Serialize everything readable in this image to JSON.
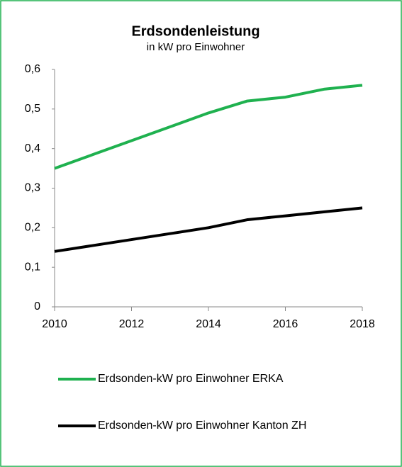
{
  "chart_data": {
    "type": "line",
    "title": "Erdsondenleistung",
    "subtitle": "in kW pro Einwohner",
    "x": [
      2010,
      2011,
      2012,
      2013,
      2014,
      2015,
      2016,
      2017,
      2018
    ],
    "series": [
      {
        "name": "Erdsonden-kW pro Einwohner ERKA",
        "color": "#1fb14f",
        "values": [
          0.35,
          0.385,
          0.42,
          0.455,
          0.49,
          0.52,
          0.53,
          0.55,
          0.56
        ]
      },
      {
        "name": "Erdsonden-kW pro Einwohner Kanton ZH",
        "color": "#000000",
        "values": [
          0.14,
          0.155,
          0.17,
          0.185,
          0.2,
          0.22,
          0.23,
          0.24,
          0.25
        ]
      }
    ],
    "xlim": [
      2010,
      2018
    ],
    "xticks": [
      2010,
      2012,
      2014,
      2016,
      2018
    ],
    "ylim": [
      0,
      0.6
    ],
    "yticks": [
      0,
      {
        "value": 0.1,
        "label": "0,1"
      },
      {
        "value": 0.2,
        "label": "0,2"
      },
      {
        "value": 0.3,
        "label": "0,3"
      },
      {
        "value": 0.4,
        "label": "0,4"
      },
      {
        "value": 0.5,
        "label": "0,5"
      },
      {
        "value": 0.6,
        "label": "0,6"
      }
    ],
    "grid": false,
    "legend": "bottom"
  }
}
